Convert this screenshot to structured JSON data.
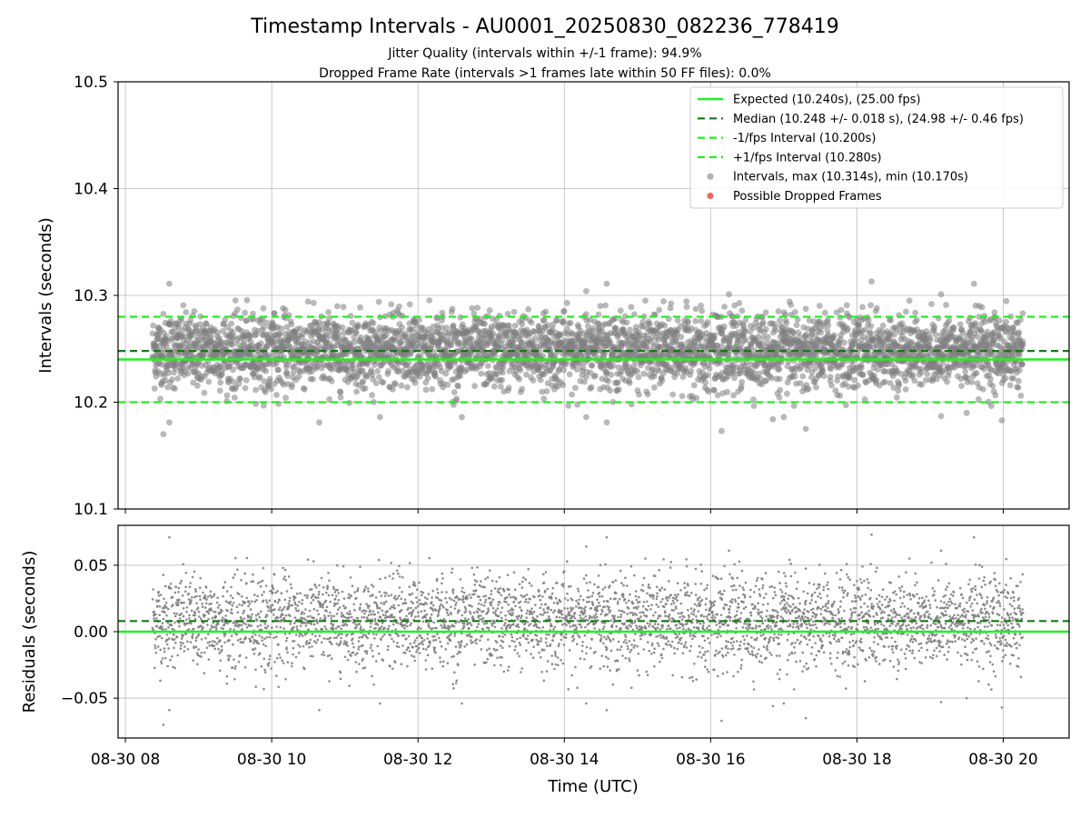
{
  "chart_data": {
    "type": "scatter",
    "title": "Timestamp Intervals - AU0001_20250830_082236_778419",
    "subtitle_1": "Jitter Quality (intervals within +/-1 frame): 94.9%",
    "subtitle_2": "Dropped Frame Rate (intervals >1 frames late within 50 FF files): 0.0%",
    "xlabel": "Time (UTC)",
    "x_range_hours": [
      7.9,
      20.9
    ],
    "x_data_range_hours": [
      8.37,
      20.27
    ],
    "x_tick_hours": [
      8,
      10,
      12,
      14,
      16,
      18,
      20
    ],
    "x_tick_labels": [
      "08-30 08",
      "08-30 10",
      "08-30 12",
      "08-30 14",
      "08-30 16",
      "08-30 18",
      "08-30 20"
    ],
    "top": {
      "ylabel": "Intervals (seconds)",
      "ylim": [
        10.1,
        10.5
      ],
      "y_ticks": [
        10.1,
        10.2,
        10.3,
        10.4,
        10.5
      ],
      "y_tick_labels": [
        "10.1",
        "10.2",
        "10.3",
        "10.4",
        "10.5"
      ],
      "expected": 10.24,
      "median": 10.248,
      "lower": 10.2,
      "upper": 10.28,
      "max": 10.314,
      "min": 10.17,
      "std": 0.018,
      "point_count": 4100,
      "outliers": [
        {
          "t": 8.52,
          "v": 10.17
        },
        {
          "t": 8.6,
          "v": 10.181
        },
        {
          "t": 8.6,
          "v": 10.311
        },
        {
          "t": 10.65,
          "v": 10.181
        },
        {
          "t": 11.48,
          "v": 10.186
        },
        {
          "t": 12.6,
          "v": 10.186
        },
        {
          "t": 14.3,
          "v": 10.186
        },
        {
          "t": 14.58,
          "v": 10.181
        },
        {
          "t": 14.58,
          "v": 10.311
        },
        {
          "t": 16.15,
          "v": 10.173
        },
        {
          "t": 16.85,
          "v": 10.184
        },
        {
          "t": 17.3,
          "v": 10.175
        },
        {
          "t": 18.2,
          "v": 10.313
        },
        {
          "t": 19.6,
          "v": 10.311
        },
        {
          "t": 19.15,
          "v": 10.187
        },
        {
          "t": 19.5,
          "v": 10.19
        },
        {
          "t": 19.98,
          "v": 10.183
        },
        {
          "t": 17.0,
          "v": 10.186
        },
        {
          "t": 14.3,
          "v": 10.304
        },
        {
          "t": 16.25,
          "v": 10.301
        },
        {
          "t": 19.15,
          "v": 10.301
        }
      ]
    },
    "bottom": {
      "ylabel": "Residuals (seconds)",
      "ylim": [
        -0.08,
        0.08
      ],
      "y_ticks": [
        -0.05,
        0.0,
        0.05
      ],
      "y_tick_labels": [
        "−0.05",
        "0.00",
        "0.05"
      ],
      "expected": 0.0,
      "median": 0.008
    },
    "legend": {
      "placement": "upper-right",
      "items": [
        {
          "label": "Expected (10.240s), (25.00 fps)",
          "style": "solid-line",
          "color": "#22ee22"
        },
        {
          "label": "Median (10.248 +/- 0.018 s), (24.98 +/- 0.46 fps)",
          "style": "dashed-line",
          "color": "#147814"
        },
        {
          "label": "-1/fps Interval (10.200s)",
          "style": "dashed-line",
          "color": "#22ee22"
        },
        {
          "label": "+1/fps Interval (10.280s)",
          "style": "dashed-line",
          "color": "#22ee22"
        },
        {
          "label": "Intervals, max (10.314s), min (10.170s)",
          "style": "marker",
          "color": "#808080"
        },
        {
          "label": "Possible Dropped Frames",
          "style": "marker",
          "color": "#ee5555"
        }
      ]
    },
    "colors": {
      "expected": "#22ee22",
      "median": "#147814",
      "bounds": "#22ee22",
      "points": "#808080",
      "dropped": "#ee5555",
      "grid": "#b0b0b0"
    }
  }
}
